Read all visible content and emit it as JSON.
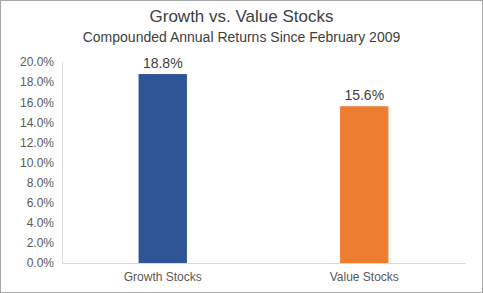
{
  "chart_data": {
    "type": "bar",
    "title": "Growth vs. Value Stocks",
    "subtitle": "Compounded Annual Returns Since February 2009",
    "categories": [
      "Growth Stocks",
      "Value Stocks"
    ],
    "values": [
      18.8,
      15.6
    ],
    "value_labels": [
      "18.8%",
      "15.6%"
    ],
    "colors": [
      "#2f5597",
      "#ed7d31"
    ],
    "ylim": [
      0,
      20
    ],
    "yticks": [
      {
        "value": 0,
        "label": "0.0%"
      },
      {
        "value": 2,
        "label": "2.0%"
      },
      {
        "value": 4,
        "label": "4.0%"
      },
      {
        "value": 6,
        "label": "6.0%"
      },
      {
        "value": 8,
        "label": "8.0%"
      },
      {
        "value": 10,
        "label": "10.0%"
      },
      {
        "value": 12,
        "label": "12.0%"
      },
      {
        "value": 14,
        "label": "14.0%"
      },
      {
        "value": 16,
        "label": "16.0%"
      },
      {
        "value": 18,
        "label": "18.0%"
      },
      {
        "value": 20,
        "label": "20.0%"
      }
    ],
    "data_labels": true,
    "grid": false
  }
}
